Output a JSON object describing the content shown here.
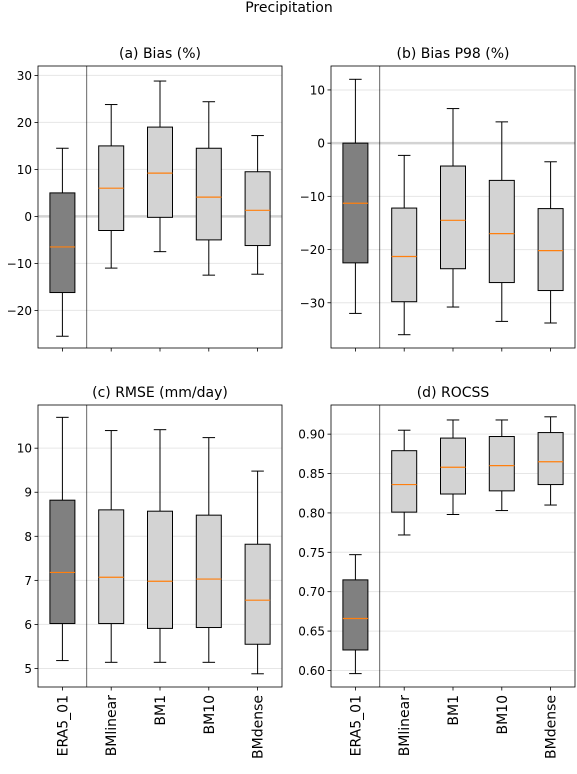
{
  "figure": {
    "title": "Precipitation"
  },
  "colors": {
    "reference_box": "#808080",
    "model_box": "#d3d3d3",
    "median": "#ff7f0e",
    "zero_line": "#d3d3d3",
    "grid": "#e6e6e6"
  },
  "chart_data": [
    {
      "type": "boxplot",
      "title": "(a) Bias (%)",
      "categories": [
        "ERA5_01",
        "BMlinear",
        "BM1",
        "BM10",
        "BMdense"
      ],
      "ylim": [
        -28,
        32
      ],
      "yticks": [
        -20,
        -10,
        0,
        10,
        20,
        30
      ],
      "ytick_labels": [
        "−20",
        "−10",
        "0",
        "10",
        "20",
        "30"
      ],
      "zero_line": 0,
      "grid": true,
      "boxes": [
        {
          "whislo": -25.5,
          "q1": -16.2,
          "med": -6.5,
          "q3": 5.0,
          "whishi": 14.5
        },
        {
          "whislo": -11.0,
          "q1": -3.0,
          "med": 6.0,
          "q3": 15.0,
          "whishi": 23.8
        },
        {
          "whislo": -7.5,
          "q1": -0.2,
          "med": 9.2,
          "q3": 19.0,
          "whishi": 28.8
        },
        {
          "whislo": -12.5,
          "q1": -5.0,
          "med": 4.1,
          "q3": 14.5,
          "whishi": 24.4
        },
        {
          "whislo": -12.3,
          "q1": -6.2,
          "med": 1.3,
          "q3": 9.5,
          "whishi": 17.2
        }
      ]
    },
    {
      "type": "boxplot",
      "title": "(b) Bias P98 (%)",
      "categories": [
        "ERA5_01",
        "BMlinear",
        "BM1",
        "BM10",
        "BMdense"
      ],
      "ylim": [
        -38.5,
        14.5
      ],
      "yticks": [
        -30,
        -20,
        -10,
        0,
        10
      ],
      "ytick_labels": [
        "−30",
        "−20",
        "−10",
        "0",
        "10"
      ],
      "zero_line": 0,
      "grid": true,
      "boxes": [
        {
          "whislo": -32.0,
          "q1": -22.5,
          "med": -11.3,
          "q3": 0.0,
          "whishi": 12.0
        },
        {
          "whislo": -36.0,
          "q1": -29.8,
          "med": -21.3,
          "q3": -12.2,
          "whishi": -2.3
        },
        {
          "whislo": -30.8,
          "q1": -23.6,
          "med": -14.5,
          "q3": -4.3,
          "whishi": 6.5
        },
        {
          "whislo": -33.5,
          "q1": -26.2,
          "med": -17.0,
          "q3": -7.0,
          "whishi": 4.0
        },
        {
          "whislo": -33.8,
          "q1": -27.7,
          "med": -20.2,
          "q3": -12.3,
          "whishi": -3.5
        }
      ]
    },
    {
      "type": "boxplot",
      "title": "(c) RMSE (mm/day)",
      "categories": [
        "ERA5_01",
        "BMlinear",
        "BM1",
        "BM10",
        "BMdense"
      ],
      "ylim": [
        4.58,
        10.98
      ],
      "yticks": [
        5,
        6,
        7,
        8,
        9,
        10
      ],
      "ytick_labels": [
        "5",
        "6",
        "7",
        "8",
        "9",
        "10"
      ],
      "grid": true,
      "boxes": [
        {
          "whislo": 5.18,
          "q1": 6.02,
          "med": 7.18,
          "q3": 8.82,
          "whishi": 10.7
        },
        {
          "whislo": 5.14,
          "q1": 6.02,
          "med": 7.07,
          "q3": 8.6,
          "whishi": 10.4
        },
        {
          "whislo": 5.14,
          "q1": 5.91,
          "med": 6.98,
          "q3": 8.57,
          "whishi": 10.42
        },
        {
          "whislo": 5.14,
          "q1": 5.93,
          "med": 7.03,
          "q3": 8.48,
          "whishi": 10.24
        },
        {
          "whislo": 4.88,
          "q1": 5.55,
          "med": 6.55,
          "q3": 7.82,
          "whishi": 9.48
        }
      ]
    },
    {
      "type": "boxplot",
      "title": "(d) ROCSS",
      "categories": [
        "ERA5_01",
        "BMlinear",
        "BM1",
        "BM10",
        "BMdense"
      ],
      "ylim": [
        0.579,
        0.937
      ],
      "yticks": [
        0.6,
        0.65,
        0.7,
        0.75,
        0.8,
        0.85,
        0.9
      ],
      "ytick_labels": [
        "0.60",
        "0.65",
        "0.70",
        "0.75",
        "0.80",
        "0.85",
        "0.90"
      ],
      "grid": true,
      "boxes": [
        {
          "whislo": 0.596,
          "q1": 0.626,
          "med": 0.666,
          "q3": 0.715,
          "whishi": 0.747
        },
        {
          "whislo": 0.772,
          "q1": 0.801,
          "med": 0.836,
          "q3": 0.879,
          "whishi": 0.905
        },
        {
          "whislo": 0.798,
          "q1": 0.824,
          "med": 0.858,
          "q3": 0.895,
          "whishi": 0.918
        },
        {
          "whislo": 0.803,
          "q1": 0.828,
          "med": 0.86,
          "q3": 0.897,
          "whishi": 0.918
        },
        {
          "whislo": 0.81,
          "q1": 0.836,
          "med": 0.865,
          "q3": 0.902,
          "whishi": 0.922
        }
      ]
    }
  ]
}
